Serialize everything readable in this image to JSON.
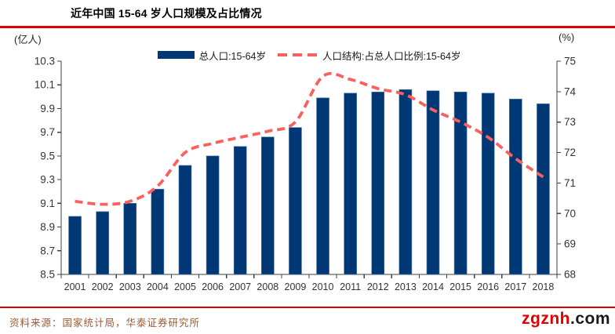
{
  "page": {
    "source_note": "资料来源：国家统计局，华泰证券研究所",
    "watermark": {
      "name": "zgznh",
      "tld": ".com"
    }
  },
  "colors": {
    "bar": "#003876",
    "bar_edge": "#4f73a3",
    "line": "#F9615E",
    "rule": "#E00000",
    "axis": "#404040",
    "axis_text": "#333333",
    "watermark_red": "#E00000",
    "watermark_dark": "#1a1a1a",
    "source_text": "#9A5B35"
  },
  "chart_data": {
    "type": "bar",
    "title": "近年中国 15-64 岁人口规模及占比情况",
    "categories": [
      "2001",
      "2002",
      "2003",
      "2004",
      "2005",
      "2006",
      "2007",
      "2008",
      "2009",
      "2010",
      "2011",
      "2012",
      "2013",
      "2014",
      "2015",
      "2016",
      "2017",
      "2018"
    ],
    "series": [
      {
        "name": "总人口:15-64岁",
        "type": "bar",
        "axis": "left",
        "unit": "亿人",
        "values": [
          8.99,
          9.03,
          9.1,
          9.22,
          9.42,
          9.5,
          9.58,
          9.66,
          9.74,
          9.99,
          10.03,
          10.04,
          10.06,
          10.05,
          10.04,
          10.03,
          9.98,
          9.94
        ]
      },
      {
        "name": "人口结构:占总人口比例:15-64岁",
        "type": "line",
        "axis": "right",
        "unit": "%",
        "values": [
          70.4,
          70.3,
          70.4,
          70.9,
          72.0,
          72.3,
          72.5,
          72.7,
          73.0,
          74.5,
          74.4,
          74.1,
          73.9,
          73.4,
          73.0,
          72.5,
          71.8,
          71.2
        ]
      }
    ],
    "left_axis": {
      "label": "(亿人)",
      "min": 8.5,
      "max": 10.3,
      "step": 0.2,
      "ticks": [
        "10.3",
        "10.1",
        "9.9",
        "9.7",
        "9.5",
        "9.3",
        "9.1",
        "8.9",
        "8.7",
        "8.5"
      ]
    },
    "right_axis": {
      "label": "(%)",
      "min": 68,
      "max": 75,
      "step": 1,
      "ticks": [
        "75",
        "74",
        "73",
        "72",
        "71",
        "70",
        "69",
        "68"
      ]
    },
    "legend_position": "top",
    "grid": false
  }
}
